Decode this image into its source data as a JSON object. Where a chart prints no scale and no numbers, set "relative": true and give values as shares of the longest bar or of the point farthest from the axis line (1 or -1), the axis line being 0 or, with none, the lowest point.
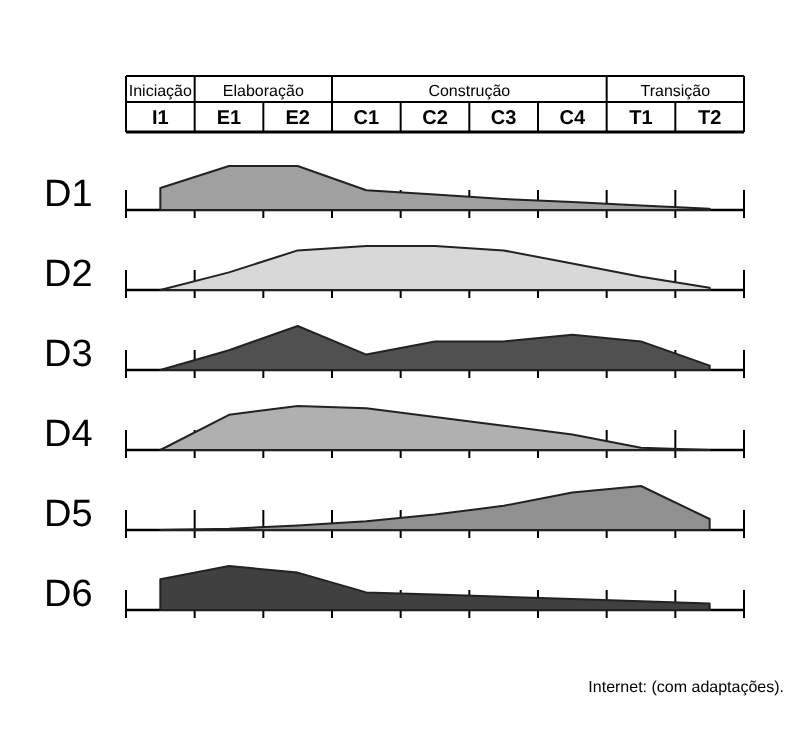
{
  "chart_data": [
    {
      "type": "area",
      "title": "D1",
      "categories": [
        "I1",
        "E1",
        "E2",
        "C1",
        "C2",
        "C3",
        "C4",
        "T1",
        "T2"
      ],
      "relative": true,
      "tick_labels": "x",
      "annotations": [
        "Iniciação",
        "Elaboração",
        "Construção",
        "Transição"
      ],
      "series": [
        {
          "color": "#a0a0a0",
          "values": [
            0.5,
            1,
            1,
            0.45,
            0.35,
            0.25,
            0.18,
            0.1,
            0.03
          ]
        }
      ]
    },
    {
      "type": "area",
      "title": "D2",
      "categories": [
        null,
        null,
        null,
        null,
        null,
        null,
        null,
        null,
        null
      ],
      "relative": true,
      "tick_labels": false,
      "series": [
        {
          "color": "#d8d8d8",
          "values": [
            0,
            0.4,
            0.9,
            1,
            1,
            0.9,
            0.6,
            0.3,
            0.05
          ]
        }
      ]
    },
    {
      "type": "area",
      "title": "D3",
      "categories": [
        null,
        null,
        null,
        null,
        null,
        null,
        null,
        null,
        null
      ],
      "relative": true,
      "tick_labels": false,
      "series": [
        {
          "color": "#505050",
          "values": [
            0,
            0.45,
            1,
            0.35,
            0.65,
            0.65,
            0.8,
            0.65,
            0.1
          ]
        }
      ]
    },
    {
      "type": "area",
      "title": "D4",
      "categories": [
        null,
        null,
        null,
        null,
        null,
        null,
        null,
        null,
        null
      ],
      "relative": true,
      "tick_labels": false,
      "series": [
        {
          "color": "#b0b0b0",
          "values": [
            0,
            0.8,
            1,
            0.95,
            0.75,
            0.55,
            0.35,
            0.05,
            0
          ]
        }
      ]
    },
    {
      "type": "area",
      "title": "D5",
      "categories": [
        null,
        null,
        null,
        null,
        null,
        null,
        null,
        null,
        null
      ],
      "relative": true,
      "tick_labels": false,
      "series": [
        {
          "color": "#909090",
          "values": [
            0,
            0.03,
            0.1,
            0.2,
            0.35,
            0.55,
            0.85,
            1,
            0.25
          ]
        }
      ]
    },
    {
      "type": "area",
      "title": "D6",
      "categories": [
        null,
        null,
        null,
        null,
        null,
        null,
        null,
        null,
        null
      ],
      "relative": true,
      "tick_labels": false,
      "annotations": [
        "Internet: (com adaptações)."
      ],
      "series": [
        {
          "color": "#404040",
          "values": [
            0.7,
            1,
            0.85,
            0.4,
            0.35,
            0.3,
            0.25,
            0.2,
            0.15
          ]
        }
      ]
    }
  ]
}
